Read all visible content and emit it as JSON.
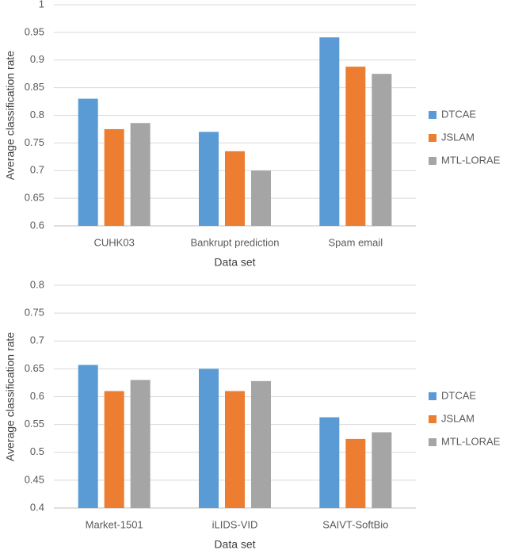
{
  "chart_data": [
    {
      "type": "bar",
      "xlabel": "Data set",
      "ylabel": "Average classification rate",
      "categories": [
        "CUHK03",
        "Bankrupt prediction",
        "Spam email"
      ],
      "series": [
        {
          "name": "DTCAE",
          "color": "#5b9bd5",
          "values": [
            0.83,
            0.77,
            0.941
          ]
        },
        {
          "name": "JSLAM",
          "color": "#ed7d31",
          "values": [
            0.775,
            0.735,
            0.888
          ]
        },
        {
          "name": "MTL-LORAE",
          "color": "#a5a5a5",
          "values": [
            0.786,
            0.7,
            0.875
          ]
        }
      ],
      "ylim": [
        0.6,
        1
      ],
      "yticks": [
        0.6,
        0.65,
        0.7,
        0.75,
        0.8,
        0.85,
        0.9,
        0.95,
        1
      ],
      "grid": true,
      "legend": "right"
    },
    {
      "type": "bar",
      "xlabel": "Data set",
      "ylabel": "Average classification rate",
      "categories": [
        "Market-1501",
        "iLIDS-VID",
        "SAIVT-SoftBio"
      ],
      "series": [
        {
          "name": "DTCAE",
          "color": "#5b9bd5",
          "values": [
            0.657,
            0.65,
            0.563
          ]
        },
        {
          "name": "JSLAM",
          "color": "#ed7d31",
          "values": [
            0.61,
            0.61,
            0.524
          ]
        },
        {
          "name": "MTL-LORAE",
          "color": "#a5a5a5",
          "values": [
            0.63,
            0.628,
            0.536
          ]
        }
      ],
      "ylim": [
        0.4,
        0.8
      ],
      "yticks": [
        0.4,
        0.45,
        0.5,
        0.55,
        0.6,
        0.65,
        0.7,
        0.75,
        0.8
      ],
      "grid": true,
      "legend": "right"
    }
  ]
}
